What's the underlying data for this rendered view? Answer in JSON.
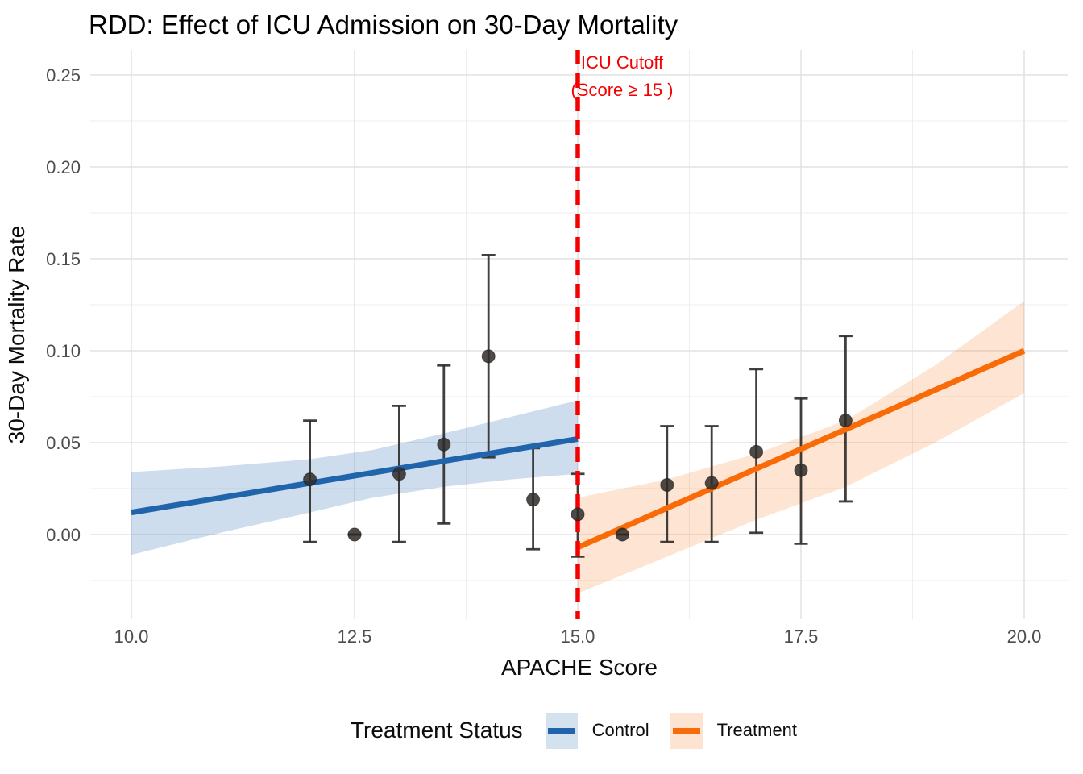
{
  "title": "RDD: Effect of ICU Admission on 30-Day Mortality",
  "chart_data": {
    "type": "scatter",
    "title": "RDD: Effect of ICU Admission on 30-Day Mortality",
    "xlabel": "APACHE Score",
    "ylabel": "30-Day Mortality Rate",
    "xlim": [
      9.5,
      20.5
    ],
    "ylim": [
      -0.046,
      0.264
    ],
    "grid": {
      "major": true,
      "minor": true
    },
    "x_ticks": {
      "values": [
        10.0,
        12.5,
        15.0,
        17.5,
        20.0
      ],
      "labels": [
        "10.0",
        "12.5",
        "15.0",
        "17.5",
        "20.0"
      ],
      "minor": [
        11.25,
        13.75,
        16.25,
        18.75
      ]
    },
    "y_ticks": {
      "values": [
        0.0,
        0.05,
        0.1,
        0.15,
        0.2,
        0.25
      ],
      "labels": [
        "0.00",
        "0.05",
        "0.10",
        "0.15",
        "0.20",
        "0.25"
      ],
      "minor": [
        -0.025,
        0.025,
        0.075,
        0.125,
        0.175,
        0.225
      ]
    },
    "cutoff": {
      "x": 15,
      "line1": "ICU Cutoff",
      "line2": "(Score ≥ 15 )",
      "color": "#F40000"
    },
    "point_style": {
      "color": "#2e2a28",
      "opacity": 0.85,
      "radius": 8,
      "cap_half_width": 8.5,
      "stroke_width": 2.8
    },
    "groups": [
      {
        "name": "Control",
        "line_color": "#2065AB",
        "band_color": "rgba(32,101,171,0.22)",
        "fit_line": {
          "x": [
            10,
            15
          ],
          "y": [
            0.012,
            0.052
          ]
        },
        "band": {
          "x": [
            10,
            11,
            12,
            12.7,
            13.5,
            14.25,
            15
          ],
          "upper": [
            0.034,
            0.037,
            0.041,
            0.046,
            0.055,
            0.064,
            0.073
          ],
          "lower": [
            -0.011,
            0.001,
            0.012,
            0.02,
            0.026,
            0.03,
            0.033
          ]
        },
        "points": [
          {
            "x": 12.0,
            "y": 0.03,
            "lo": -0.004,
            "hi": 0.062
          },
          {
            "x": 12.5,
            "y": 0.0,
            "lo": 0.0,
            "hi": 0.0
          },
          {
            "x": 13.0,
            "y": 0.033,
            "lo": -0.004,
            "hi": 0.07
          },
          {
            "x": 13.5,
            "y": 0.049,
            "lo": 0.006,
            "hi": 0.092
          },
          {
            "x": 14.0,
            "y": 0.097,
            "lo": 0.042,
            "hi": 0.152
          },
          {
            "x": 14.5,
            "y": 0.019,
            "lo": -0.008,
            "hi": 0.047
          }
        ]
      },
      {
        "name": "Treatment",
        "line_color": "#F96B06",
        "band_color": "rgba(249,107,6,0.18)",
        "fit_line": {
          "x": [
            15,
            20
          ],
          "y": [
            -0.007,
            0.1
          ]
        },
        "band": {
          "x": [
            15,
            16,
            17,
            18,
            19,
            20
          ],
          "upper": [
            0.02,
            0.03,
            0.044,
            0.062,
            0.092,
            0.127
          ],
          "lower": [
            -0.032,
            -0.012,
            0.008,
            0.026,
            0.05,
            0.077
          ]
        },
        "points": [
          {
            "x": 15.0,
            "y": 0.011,
            "lo": -0.012,
            "hi": 0.033
          },
          {
            "x": 15.5,
            "y": 0.0,
            "lo": 0.0,
            "hi": 0.0
          },
          {
            "x": 16.0,
            "y": 0.027,
            "lo": -0.004,
            "hi": 0.059
          },
          {
            "x": 16.5,
            "y": 0.028,
            "lo": -0.004,
            "hi": 0.059
          },
          {
            "x": 17.0,
            "y": 0.045,
            "lo": 0.001,
            "hi": 0.09
          },
          {
            "x": 17.5,
            "y": 0.035,
            "lo": -0.005,
            "hi": 0.074
          },
          {
            "x": 18.0,
            "y": 0.062,
            "lo": 0.018,
            "hi": 0.108
          }
        ]
      }
    ],
    "legend": {
      "title": "Treatment Status",
      "position": "bottom",
      "entries": [
        {
          "label": "Control",
          "line_color": "#2065AB",
          "fill_color": "#D4E2EF"
        },
        {
          "label": "Treatment",
          "line_color": "#F96B06",
          "fill_color": "#FDE3D1"
        }
      ]
    },
    "colors": {
      "grid_major": "#E2E2E2",
      "grid_minor": "#EDEDED",
      "tick_text": "#4d4d4d"
    }
  }
}
